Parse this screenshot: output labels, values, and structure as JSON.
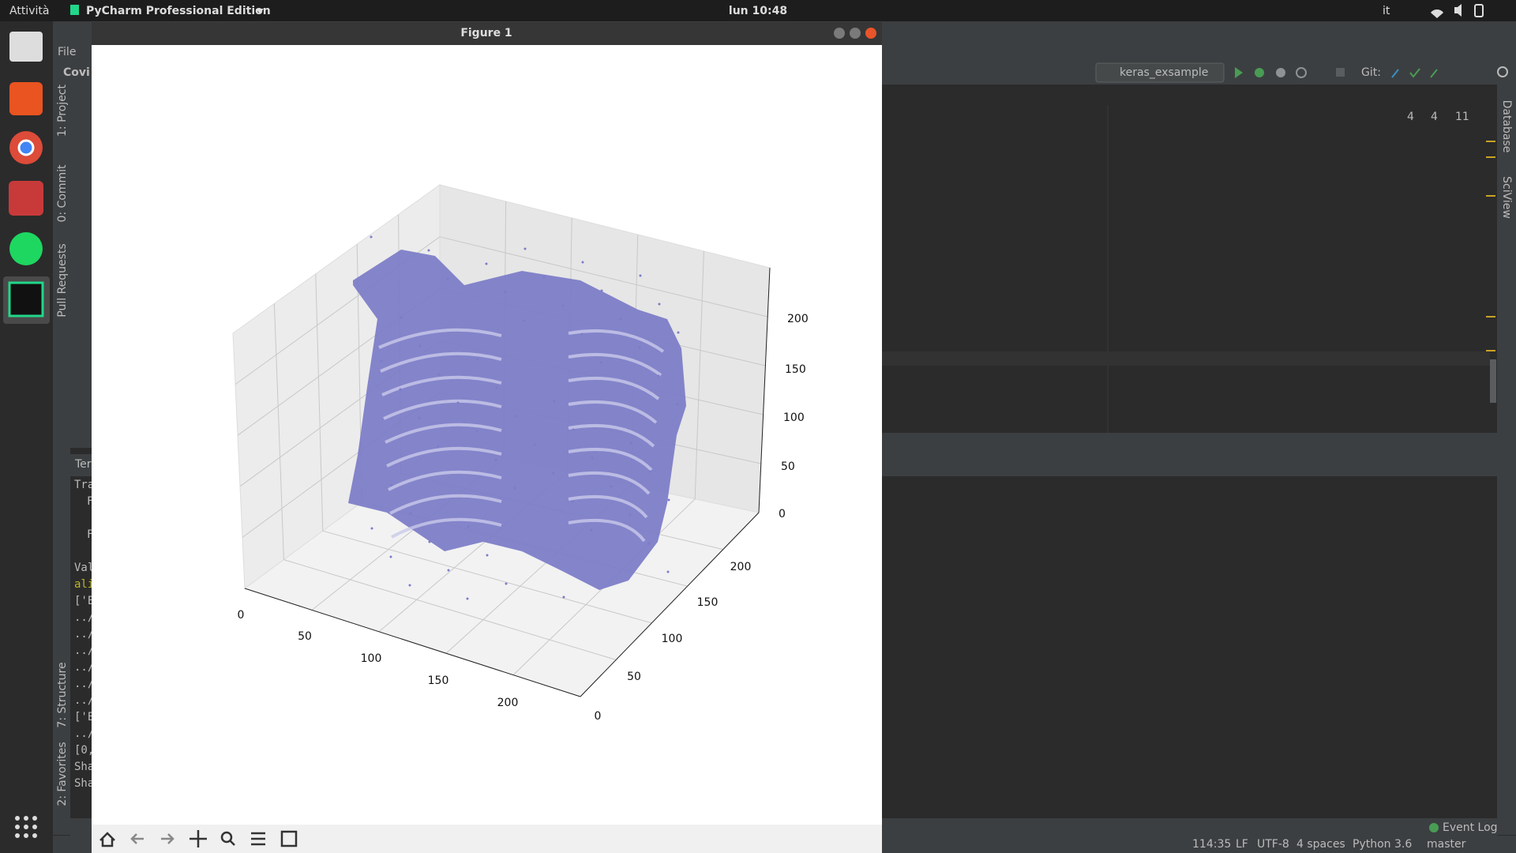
{
  "topbar": {
    "activities": "Attività",
    "app": "PyCharm Professional Edition",
    "clock": "lun 10:48",
    "lang": "it"
  },
  "figure": {
    "title": "Figure 1",
    "axes": {
      "x_ticks": [
        0,
        50,
        100,
        150,
        200
      ],
      "y_ticks": [
        0,
        50,
        100,
        150,
        200
      ],
      "z_ticks": [
        0,
        50,
        100,
        150,
        200
      ]
    }
  },
  "ide": {
    "menu_file": "File",
    "project_short": "Covi",
    "run_config": "keras_exsample",
    "git": "Git:",
    "inspections": [
      "4",
      "4",
      "11"
    ],
    "left_tabs": [
      "1: Project",
      "0: Commit",
      "Pull Requests",
      "7: Structure",
      "2: Favorites"
    ],
    "right_tabs": [
      "Database",
      "SciView"
    ],
    "terminal_tab": "Ter",
    "terminal_lines": [
      "Tra",
      "F",
      "F",
      "Val",
      "ali",
      "['E",
      "../",
      "../",
      "../",
      "../",
      "../",
      "../",
      "['E",
      "../",
      "[0,",
      "Sha",
      "Sha"
    ],
    "event_log": "Event Log",
    "status": [
      "114:35",
      "LF",
      "UTF-8",
      "4 spaces",
      "Python 3.6",
      "master"
    ]
  }
}
